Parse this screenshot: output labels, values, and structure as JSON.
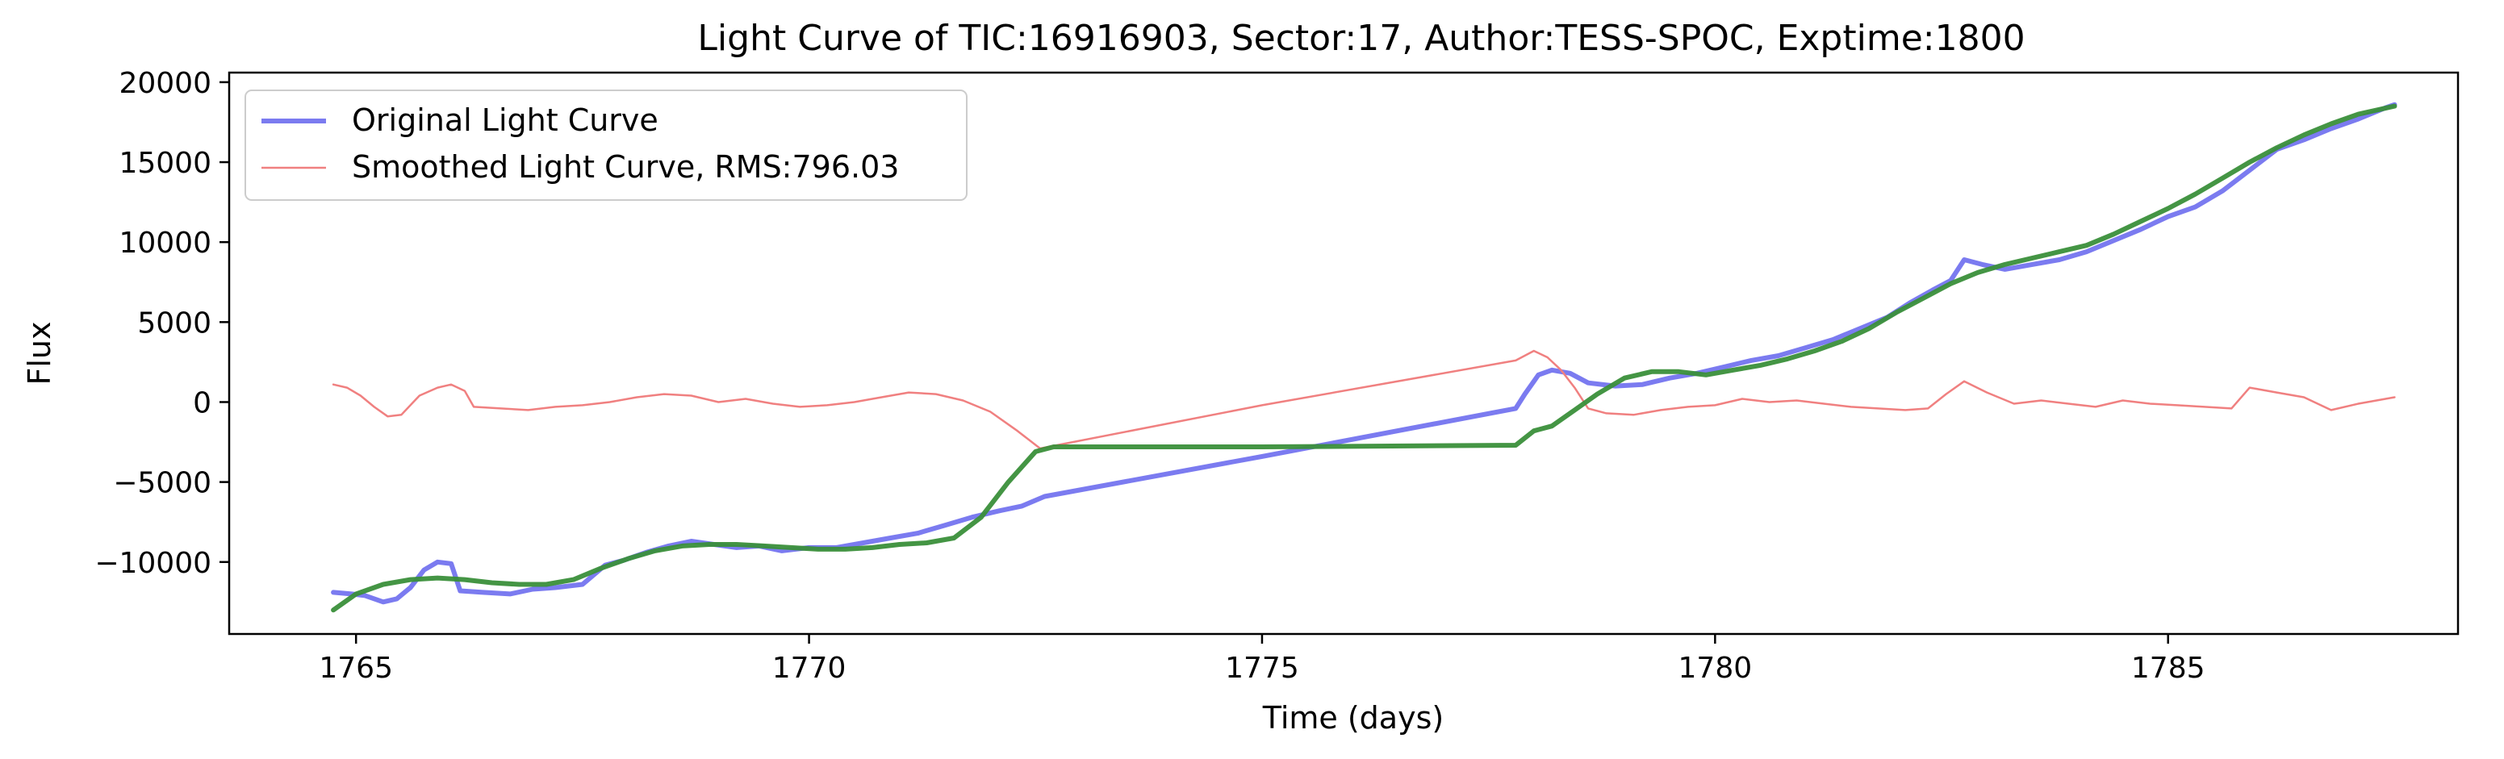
{
  "chart_data": {
    "type": "line",
    "title": "Light Curve of TIC:16916903, Sector:17, Author:TESS-SPOC, Exptime:1800",
    "xlabel": "Time (days)",
    "ylabel": "Flux",
    "xlim": [
      1763.6,
      1788.2
    ],
    "ylim": [
      -14500,
      20600
    ],
    "xticks": [
      1765,
      1770,
      1775,
      1780,
      1785
    ],
    "yticks": [
      -10000,
      -5000,
      0,
      5000,
      10000,
      15000,
      20000
    ],
    "xtick_labels": [
      "1765",
      "1770",
      "1775",
      "1780",
      "1785"
    ],
    "ytick_labels": [
      "−10000",
      "−5000",
      "0",
      "5000",
      "10000",
      "15000",
      "20000"
    ],
    "grid": false,
    "legend_position": "top-left",
    "series": [
      {
        "name": "Original Light Curve",
        "color": "#7b7bf0",
        "points": [
          [
            1764.75,
            -11900
          ],
          [
            1764.95,
            -12000
          ],
          [
            1765.1,
            -12100
          ],
          [
            1765.3,
            -12500
          ],
          [
            1765.45,
            -12300
          ],
          [
            1765.6,
            -11600
          ],
          [
            1765.75,
            -10500
          ],
          [
            1765.9,
            -10000
          ],
          [
            1766.05,
            -10100
          ],
          [
            1766.15,
            -11800
          ],
          [
            1766.4,
            -11900
          ],
          [
            1766.7,
            -12000
          ],
          [
            1766.95,
            -11700
          ],
          [
            1767.2,
            -11600
          ],
          [
            1767.5,
            -11400
          ],
          [
            1767.75,
            -10200
          ],
          [
            1767.95,
            -9900
          ],
          [
            1768.2,
            -9400
          ],
          [
            1768.45,
            -9000
          ],
          [
            1768.7,
            -8700
          ],
          [
            1768.95,
            -8900
          ],
          [
            1769.2,
            -9100
          ],
          [
            1769.45,
            -9000
          ],
          [
            1769.7,
            -9300
          ],
          [
            1770.0,
            -9100
          ],
          [
            1770.3,
            -9100
          ],
          [
            1770.6,
            -8800
          ],
          [
            1770.9,
            -8500
          ],
          [
            1771.2,
            -8200
          ],
          [
            1771.5,
            -7700
          ],
          [
            1771.8,
            -7200
          ],
          [
            1772.1,
            -6800
          ],
          [
            1772.35,
            -6500
          ],
          [
            1772.6,
            -5900
          ],
          [
            1775.0,
            -3400
          ],
          [
            1777.8,
            -400
          ],
          [
            1777.9,
            500
          ],
          [
            1778.05,
            1700
          ],
          [
            1778.2,
            2000
          ],
          [
            1778.4,
            1800
          ],
          [
            1778.6,
            1200
          ],
          [
            1778.9,
            1000
          ],
          [
            1779.2,
            1100
          ],
          [
            1779.5,
            1500
          ],
          [
            1779.8,
            1800
          ],
          [
            1780.1,
            2200
          ],
          [
            1780.4,
            2600
          ],
          [
            1780.7,
            2900
          ],
          [
            1781.0,
            3400
          ],
          [
            1781.3,
            3900
          ],
          [
            1781.6,
            4600
          ],
          [
            1781.9,
            5300
          ],
          [
            1782.15,
            6200
          ],
          [
            1782.4,
            7000
          ],
          [
            1782.6,
            7600
          ],
          [
            1782.75,
            8900
          ],
          [
            1782.95,
            8600
          ],
          [
            1783.2,
            8300
          ],
          [
            1783.5,
            8600
          ],
          [
            1783.8,
            8900
          ],
          [
            1784.1,
            9400
          ],
          [
            1784.4,
            10100
          ],
          [
            1784.7,
            10800
          ],
          [
            1785.0,
            11600
          ],
          [
            1785.3,
            12200
          ],
          [
            1785.6,
            13200
          ],
          [
            1785.9,
            14500
          ],
          [
            1786.2,
            15800
          ],
          [
            1786.5,
            16400
          ],
          [
            1786.8,
            17100
          ],
          [
            1787.1,
            17700
          ],
          [
            1787.4,
            18400
          ],
          [
            1787.5,
            18600
          ]
        ]
      },
      {
        "name": "Smoothed Light Curve, RMS:796.03",
        "color": "#f08080",
        "points": [
          [
            1764.75,
            1100
          ],
          [
            1764.9,
            900
          ],
          [
            1765.05,
            400
          ],
          [
            1765.2,
            -300
          ],
          [
            1765.35,
            -900
          ],
          [
            1765.5,
            -800
          ],
          [
            1765.7,
            400
          ],
          [
            1765.9,
            900
          ],
          [
            1766.05,
            1100
          ],
          [
            1766.2,
            700
          ],
          [
            1766.3,
            -300
          ],
          [
            1766.6,
            -400
          ],
          [
            1766.9,
            -500
          ],
          [
            1767.2,
            -300
          ],
          [
            1767.5,
            -200
          ],
          [
            1767.8,
            0
          ],
          [
            1768.1,
            300
          ],
          [
            1768.4,
            500
          ],
          [
            1768.7,
            400
          ],
          [
            1769.0,
            0
          ],
          [
            1769.3,
            200
          ],
          [
            1769.6,
            -100
          ],
          [
            1769.9,
            -300
          ],
          [
            1770.2,
            -200
          ],
          [
            1770.5,
            0
          ],
          [
            1770.8,
            300
          ],
          [
            1771.1,
            600
          ],
          [
            1771.4,
            500
          ],
          [
            1771.7,
            100
          ],
          [
            1772.0,
            -600
          ],
          [
            1772.3,
            -1800
          ],
          [
            1772.55,
            -2900
          ],
          [
            1775.0,
            -200
          ],
          [
            1777.8,
            2600
          ],
          [
            1778.0,
            3200
          ],
          [
            1778.15,
            2800
          ],
          [
            1778.3,
            2000
          ],
          [
            1778.45,
            900
          ],
          [
            1778.6,
            -400
          ],
          [
            1778.8,
            -700
          ],
          [
            1779.1,
            -800
          ],
          [
            1779.4,
            -500
          ],
          [
            1779.7,
            -300
          ],
          [
            1780.0,
            -200
          ],
          [
            1780.3,
            200
          ],
          [
            1780.6,
            0
          ],
          [
            1780.9,
            100
          ],
          [
            1781.2,
            -100
          ],
          [
            1781.5,
            -300
          ],
          [
            1781.8,
            -400
          ],
          [
            1782.1,
            -500
          ],
          [
            1782.35,
            -400
          ],
          [
            1782.55,
            500
          ],
          [
            1782.75,
            1300
          ],
          [
            1783.0,
            600
          ],
          [
            1783.3,
            -100
          ],
          [
            1783.6,
            100
          ],
          [
            1783.9,
            -100
          ],
          [
            1784.2,
            -300
          ],
          [
            1784.5,
            100
          ],
          [
            1784.8,
            -100
          ],
          [
            1785.1,
            -200
          ],
          [
            1785.4,
            -300
          ],
          [
            1785.7,
            -400
          ],
          [
            1785.9,
            900
          ],
          [
            1786.2,
            600
          ],
          [
            1786.5,
            300
          ],
          [
            1786.8,
            -500
          ],
          [
            1787.1,
            -100
          ],
          [
            1787.5,
            300
          ]
        ]
      },
      {
        "name": "",
        "color": "#3a8f3a",
        "points": [
          [
            1764.75,
            -13000
          ],
          [
            1765.0,
            -12000
          ],
          [
            1765.3,
            -11400
          ],
          [
            1765.6,
            -11100
          ],
          [
            1765.9,
            -11000
          ],
          [
            1766.2,
            -11100
          ],
          [
            1766.5,
            -11300
          ],
          [
            1766.8,
            -11400
          ],
          [
            1767.1,
            -11400
          ],
          [
            1767.4,
            -11100
          ],
          [
            1767.7,
            -10400
          ],
          [
            1768.0,
            -9800
          ],
          [
            1768.3,
            -9300
          ],
          [
            1768.6,
            -9000
          ],
          [
            1768.9,
            -8900
          ],
          [
            1769.2,
            -8900
          ],
          [
            1769.5,
            -9000
          ],
          [
            1769.8,
            -9100
          ],
          [
            1770.1,
            -9200
          ],
          [
            1770.4,
            -9200
          ],
          [
            1770.7,
            -9100
          ],
          [
            1771.0,
            -8900
          ],
          [
            1771.3,
            -8800
          ],
          [
            1771.6,
            -8500
          ],
          [
            1771.9,
            -7200
          ],
          [
            1772.2,
            -5000
          ],
          [
            1772.5,
            -3100
          ],
          [
            1772.7,
            -2800
          ],
          [
            1775.0,
            -2800
          ],
          [
            1777.8,
            -2700
          ],
          [
            1778.0,
            -1800
          ],
          [
            1778.2,
            -1500
          ],
          [
            1778.45,
            -500
          ],
          [
            1778.7,
            500
          ],
          [
            1779.0,
            1500
          ],
          [
            1779.3,
            1900
          ],
          [
            1779.6,
            1900
          ],
          [
            1779.9,
            1700
          ],
          [
            1780.2,
            2000
          ],
          [
            1780.5,
            2300
          ],
          [
            1780.8,
            2700
          ],
          [
            1781.1,
            3200
          ],
          [
            1781.4,
            3800
          ],
          [
            1781.7,
            4600
          ],
          [
            1782.0,
            5600
          ],
          [
            1782.3,
            6500
          ],
          [
            1782.6,
            7400
          ],
          [
            1782.9,
            8100
          ],
          [
            1783.2,
            8600
          ],
          [
            1783.5,
            9000
          ],
          [
            1783.8,
            9400
          ],
          [
            1784.1,
            9800
          ],
          [
            1784.4,
            10500
          ],
          [
            1784.7,
            11300
          ],
          [
            1785.0,
            12100
          ],
          [
            1785.3,
            13000
          ],
          [
            1785.6,
            14000
          ],
          [
            1785.9,
            15000
          ],
          [
            1786.2,
            15900
          ],
          [
            1786.5,
            16700
          ],
          [
            1786.8,
            17400
          ],
          [
            1787.1,
            18000
          ],
          [
            1787.5,
            18500
          ]
        ]
      }
    ]
  }
}
